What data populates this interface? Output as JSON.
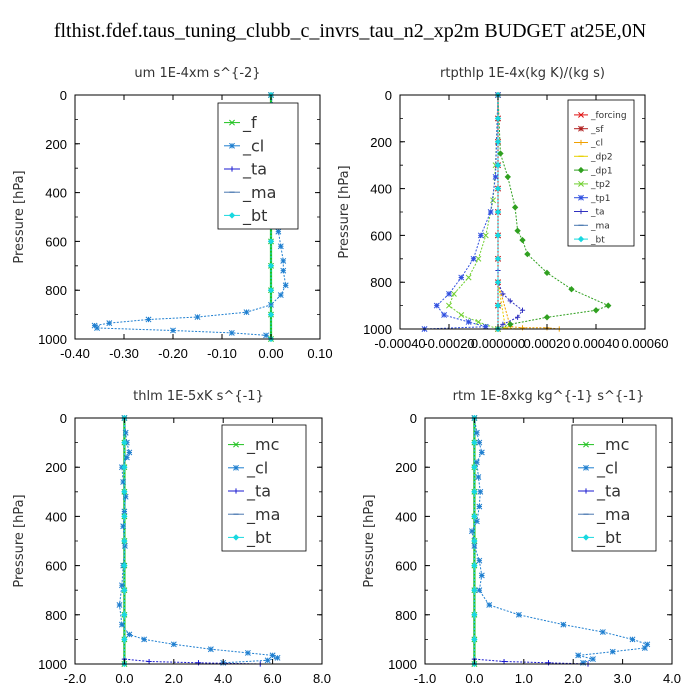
{
  "title": "flthist.fdef.taus_tuning_clubb_c_invrs_tau_n2_xp2m  BUDGET at25E,0N",
  "colors": {
    "green": "#1fc21f",
    "teal_blue": "#1f7fd0",
    "navy": "#1a1ad0",
    "slate": "#4a78b0",
    "cyan": "#18d8e0",
    "red": "#e01010",
    "dark_red": "#b02020",
    "orange": "#f0a000",
    "gold": "#e8d000",
    "green_dp1": "#30a020",
    "lime": "#70d030",
    "blue_tp1": "#3050e0",
    "indigo": "#3030c0"
  },
  "chart_data": [
    {
      "type": "line",
      "title": "um   1E-4xm s^{-2}",
      "ylabel": "Pressure [hPa]",
      "xlim": [
        -0.4,
        0.1
      ],
      "ylim": [
        1000,
        0
      ],
      "xticks": [
        "-0.40",
        "-0.30",
        "-0.20",
        "-0.10",
        "0.00",
        "0.10"
      ],
      "yticks": [
        "0",
        "200",
        "400",
        "600",
        "800",
        "1000"
      ],
      "legend": [
        "_f",
        "_cl",
        "_ta",
        "_ma",
        "_bt"
      ],
      "legend_position": "top-right",
      "series": [
        {
          "name": "_f",
          "color": "green",
          "x": [
            0,
            0,
            0,
            0,
            0,
            0,
            0,
            0,
            0,
            0,
            0
          ],
          "y": [
            0,
            100,
            200,
            300,
            400,
            500,
            600,
            700,
            800,
            900,
            1000
          ]
        },
        {
          "name": "_cl",
          "color": "teal_blue",
          "x": [
            0.0,
            0.005,
            0.01,
            0.03,
            0.035,
            0.005,
            0.002,
            0.004,
            0.003,
            0.002,
            0.003,
            0.015,
            0.02,
            0.025,
            0.025,
            0.03,
            0.02,
            0.0,
            -0.05,
            -0.15,
            -0.25,
            -0.33,
            -0.36,
            -0.355,
            -0.2,
            -0.08,
            -0.01
          ],
          "y": [
            0,
            60,
            100,
            120,
            150,
            190,
            240,
            300,
            350,
            400,
            450,
            560,
            620,
            680,
            720,
            780,
            820,
            860,
            890,
            910,
            920,
            935,
            945,
            955,
            965,
            975,
            985
          ]
        },
        {
          "name": "_ta",
          "color": "navy",
          "x": [
            0,
            0,
            0,
            0,
            0,
            0,
            0,
            0,
            0,
            0,
            0
          ],
          "y": [
            0,
            100,
            200,
            300,
            400,
            500,
            600,
            700,
            800,
            900,
            1000
          ]
        },
        {
          "name": "_ma",
          "color": "slate",
          "x": [
            0,
            0,
            0,
            0,
            0,
            0,
            0,
            0,
            0,
            0,
            0
          ],
          "y": [
            0,
            100,
            200,
            300,
            400,
            500,
            600,
            700,
            800,
            900,
            1000
          ]
        },
        {
          "name": "_bt",
          "color": "cyan",
          "x": [
            0,
            0,
            0,
            0,
            0,
            0,
            0,
            0,
            0,
            0,
            0
          ],
          "y": [
            0,
            100,
            200,
            300,
            400,
            500,
            600,
            700,
            800,
            900,
            1000
          ]
        }
      ]
    },
    {
      "type": "line",
      "title": "rtpthlp   1E-4x(kg K)/(kg s)",
      "ylabel": "Pressure [hPa]",
      "xlim": [
        -0.0004,
        0.0006
      ],
      "ylim": [
        1000,
        0
      ],
      "xticks": [
        "-0.00040",
        "-0.00020",
        "0.000000",
        "0.00020",
        "0.00040",
        "0.00060"
      ],
      "yticks": [
        "0",
        "200",
        "400",
        "600",
        "800",
        "1000"
      ],
      "legend": [
        "_forcing",
        "_sf",
        "_cl",
        "_dp2",
        "_dp1",
        "_tp2",
        "_tp1",
        "_ta",
        "_ma",
        "_bt"
      ],
      "legend_position": "top-right",
      "series": [
        {
          "name": "_forcing",
          "color": "red",
          "x": [
            0,
            0,
            0,
            0,
            0,
            0,
            0,
            0,
            0,
            0,
            0
          ],
          "y": [
            0,
            100,
            200,
            300,
            400,
            500,
            600,
            700,
            800,
            900,
            1000
          ]
        },
        {
          "name": "_sf",
          "color": "dark_red",
          "x": [
            0,
            0,
            0,
            0,
            0,
            0,
            0,
            0,
            0,
            0,
            0
          ],
          "y": [
            0,
            100,
            200,
            300,
            400,
            500,
            600,
            700,
            800,
            900,
            1000
          ]
        },
        {
          "name": "_cl",
          "color": "orange",
          "x": [
            0,
            0,
            0,
            0,
            5e-05,
            0.0001,
            0.0002,
            0.00025
          ],
          "y": [
            0,
            200,
            400,
            800,
            990,
            995,
            995,
            1000
          ]
        },
        {
          "name": "_dp2",
          "color": "gold",
          "x": [
            0,
            0,
            0,
            0,
            3e-05,
            8e-05
          ],
          "y": [
            0,
            200,
            400,
            800,
            995,
            1000
          ]
        },
        {
          "name": "_dp1",
          "color": "green_dp1",
          "x": [
            0,
            1e-05,
            4e-05,
            7e-05,
            8e-05,
            0.0001,
            0.00012,
            0.0002,
            0.0003,
            0.00045,
            0.0004,
            0.0002,
            5e-05,
            0
          ],
          "y": [
            0,
            250,
            350,
            480,
            580,
            620,
            680,
            760,
            830,
            900,
            920,
            950,
            980,
            1000
          ]
        },
        {
          "name": "_tp2",
          "color": "lime",
          "x": [
            0,
            -1e-05,
            -2e-05,
            -5e-05,
            -8e-05,
            -0.00012,
            -0.00018,
            -0.0002,
            -0.00015,
            -8e-05,
            0
          ],
          "y": [
            0,
            300,
            450,
            600,
            700,
            780,
            850,
            900,
            940,
            970,
            1000
          ]
        },
        {
          "name": "_tp1",
          "color": "blue_tp1",
          "x": [
            0,
            -1e-05,
            -3e-05,
            -7e-05,
            -0.0001,
            -0.00015,
            -0.0002,
            -0.00025,
            -0.00022,
            -0.00012,
            -5e-05,
            -0.0003
          ],
          "y": [
            0,
            350,
            500,
            600,
            700,
            780,
            850,
            900,
            940,
            970,
            990,
            1000
          ]
        },
        {
          "name": "_ta",
          "color": "indigo",
          "x": [
            0,
            0,
            0,
            0,
            2e-05,
            5e-05,
            0.0001,
            8e-05,
            2e-05,
            0
          ],
          "y": [
            0,
            500,
            750,
            800,
            850,
            880,
            920,
            950,
            980,
            1000
          ]
        },
        {
          "name": "_ma",
          "color": "slate",
          "x": [
            0,
            0,
            0,
            0,
            0,
            0,
            0,
            0,
            0,
            0,
            0
          ],
          "y": [
            0,
            100,
            200,
            300,
            400,
            500,
            600,
            700,
            800,
            900,
            1000
          ]
        },
        {
          "name": "_bt",
          "color": "cyan",
          "x": [
            0,
            0,
            0,
            0,
            0,
            0,
            0,
            0,
            0,
            0,
            0
          ],
          "y": [
            0,
            100,
            200,
            300,
            400,
            500,
            600,
            700,
            800,
            900,
            1000
          ]
        }
      ]
    },
    {
      "type": "line",
      "title": "thlm   1E-5xK s^{-1}",
      "ylabel": "Pressure [hPa]",
      "xlim": [
        -2.0,
        8.0
      ],
      "ylim": [
        1000,
        0
      ],
      "xticks": [
        "-2.0",
        "0.0",
        "2.0",
        "4.0",
        "6.0",
        "8.0"
      ],
      "yticks": [
        "0",
        "200",
        "400",
        "600",
        "800",
        "1000"
      ],
      "legend": [
        "_mc",
        "_cl",
        "_ta",
        "_ma",
        "_bt"
      ],
      "legend_position": "top-right",
      "series": [
        {
          "name": "_mc",
          "color": "green",
          "x": [
            0,
            0,
            0,
            0,
            0,
            0,
            0,
            0,
            0,
            0,
            0
          ],
          "y": [
            0,
            100,
            200,
            300,
            400,
            500,
            600,
            700,
            800,
            900,
            1000
          ]
        },
        {
          "name": "_cl",
          "color": "teal_blue",
          "x": [
            0,
            0.05,
            0.1,
            0.2,
            0.1,
            -0.1,
            -0.05,
            0.05,
            0.0,
            -0.05,
            0.02,
            -0.05,
            -0.1,
            -0.2,
            -0.1,
            0.2,
            0.8,
            2.0,
            3.5,
            5.0,
            6.0,
            6.2,
            5.8,
            4.0
          ],
          "y": [
            0,
            60,
            100,
            140,
            160,
            200,
            260,
            320,
            380,
            440,
            520,
            600,
            680,
            760,
            840,
            880,
            900,
            920,
            940,
            955,
            965,
            975,
            985,
            995
          ]
        },
        {
          "name": "_ta",
          "color": "navy",
          "x": [
            0,
            0,
            0,
            0,
            1.0,
            3.0,
            5.5
          ],
          "y": [
            0,
            500,
            900,
            980,
            990,
            995,
            1000
          ]
        },
        {
          "name": "_ma",
          "color": "slate",
          "x": [
            0,
            0,
            0,
            0,
            0,
            0,
            0,
            0,
            0,
            0,
            0
          ],
          "y": [
            0,
            100,
            200,
            300,
            400,
            500,
            600,
            700,
            800,
            900,
            1000
          ]
        },
        {
          "name": "_bt",
          "color": "cyan",
          "x": [
            0,
            0,
            0,
            0,
            0,
            0,
            0,
            0,
            0,
            0,
            0
          ],
          "y": [
            0,
            100,
            200,
            300,
            400,
            500,
            600,
            700,
            800,
            900,
            1000
          ]
        }
      ]
    },
    {
      "type": "line",
      "title": "rtm   1E-8xkg kg^{-1} s^{-1}",
      "ylabel": "Pressure [hPa]",
      "xlim": [
        -1.0,
        4.0
      ],
      "ylim": [
        1000,
        0
      ],
      "xticks": [
        "-1.0",
        "0.0",
        "1.0",
        "2.0",
        "3.0",
        "4.0"
      ],
      "yticks": [
        "0",
        "200",
        "400",
        "600",
        "800",
        "1000"
      ],
      "legend": [
        "_mc",
        "_cl",
        "_ta",
        "_ma",
        "_bt"
      ],
      "legend_position": "top-right",
      "series": [
        {
          "name": "_mc",
          "color": "green",
          "x": [
            0,
            0,
            0,
            0,
            0,
            0,
            0,
            0,
            0,
            0,
            0
          ],
          "y": [
            0,
            100,
            200,
            300,
            400,
            500,
            600,
            700,
            800,
            900,
            1000
          ]
        },
        {
          "name": "_cl",
          "color": "teal_blue",
          "x": [
            0,
            0.05,
            0.1,
            0.15,
            0.05,
            0.08,
            0.12,
            0.1,
            0.05,
            -0.05,
            0.0,
            0.1,
            0.15,
            0.1,
            0.3,
            0.9,
            1.8,
            2.6,
            3.2,
            3.5,
            3.45,
            2.8,
            2.1,
            2.4,
            2.2
          ],
          "y": [
            0,
            60,
            100,
            140,
            180,
            240,
            300,
            360,
            420,
            460,
            520,
            580,
            640,
            700,
            760,
            800,
            840,
            870,
            900,
            920,
            935,
            950,
            965,
            980,
            995
          ]
        },
        {
          "name": "_ta",
          "color": "navy",
          "x": [
            0,
            0,
            0,
            0,
            0.6,
            1.5,
            2.3
          ],
          "y": [
            0,
            500,
            900,
            980,
            990,
            995,
            1000
          ]
        },
        {
          "name": "_ma",
          "color": "slate",
          "x": [
            0,
            0,
            0,
            0,
            0,
            0,
            0,
            0,
            0,
            0,
            0
          ],
          "y": [
            0,
            100,
            200,
            300,
            400,
            500,
            600,
            700,
            800,
            900,
            1000
          ]
        },
        {
          "name": "_bt",
          "color": "cyan",
          "x": [
            0,
            0,
            0,
            0,
            0,
            0,
            0,
            0,
            0,
            0,
            0
          ],
          "y": [
            0,
            100,
            200,
            300,
            400,
            500,
            600,
            700,
            800,
            900,
            1000
          ]
        }
      ]
    }
  ]
}
